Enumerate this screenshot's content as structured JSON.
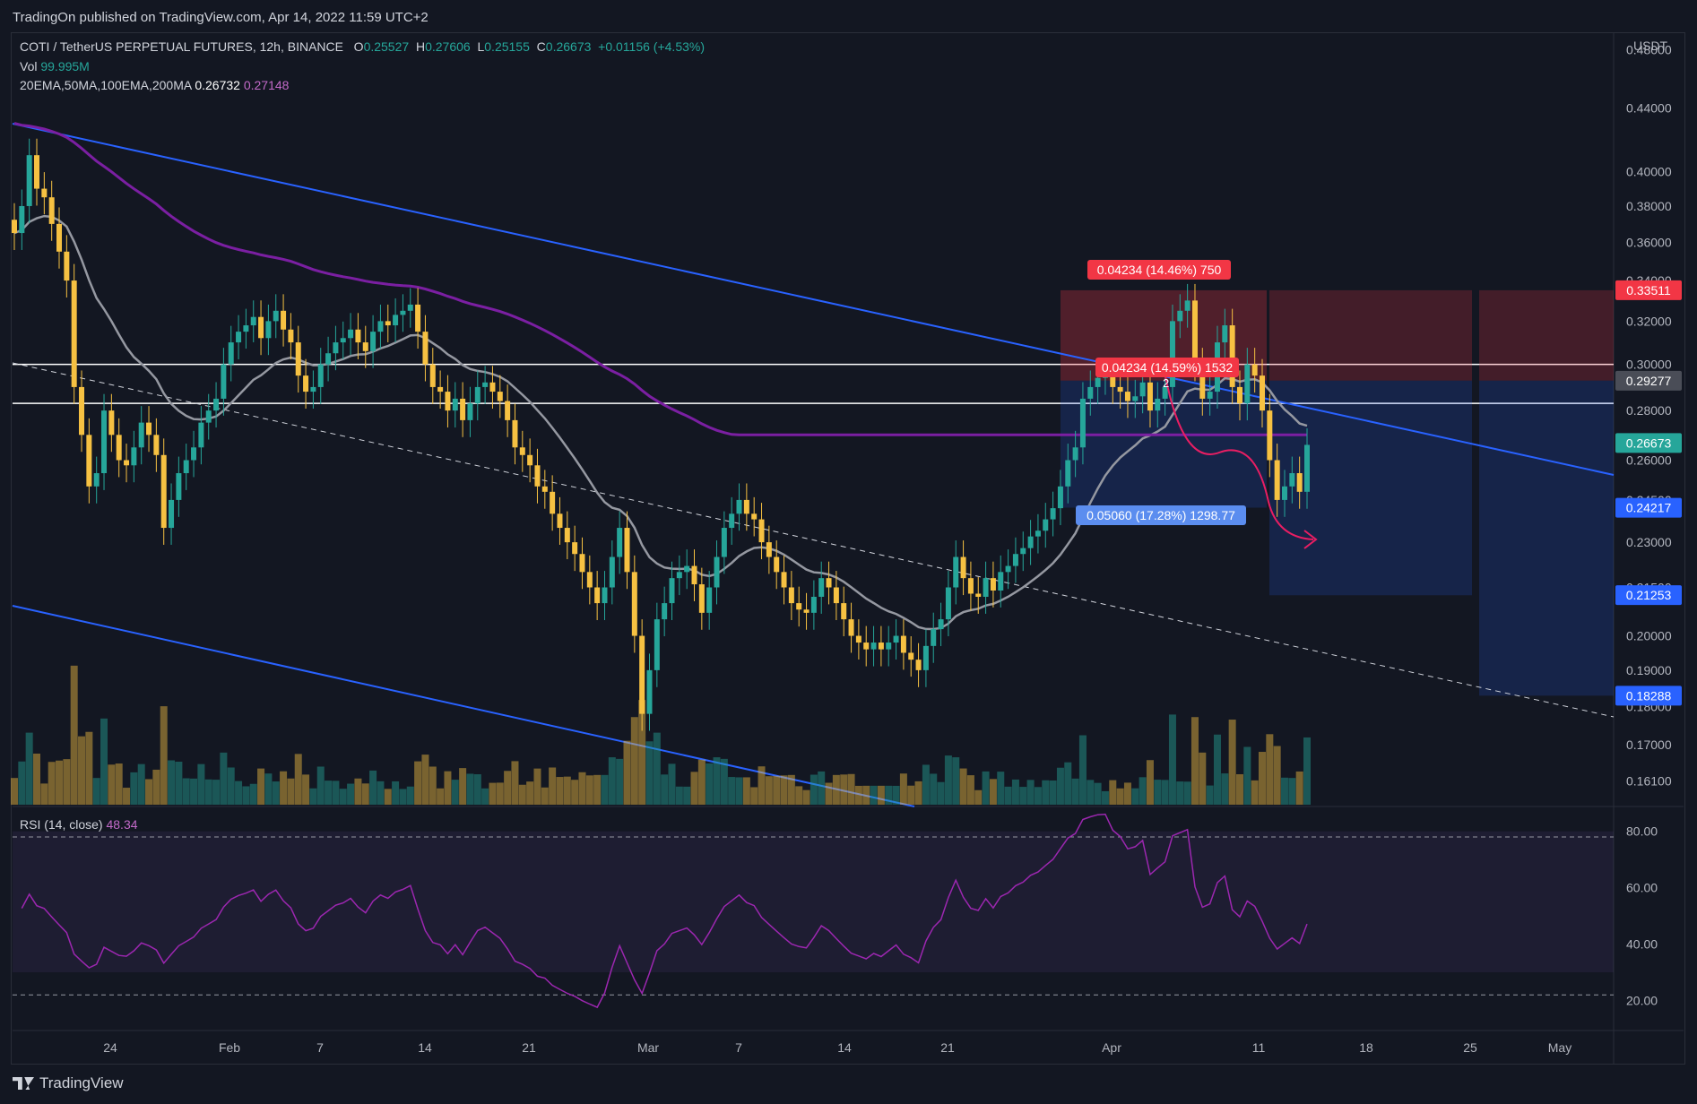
{
  "header": {
    "published": "TradingOn published on TradingView.com, Apr 14, 2022 11:59 UTC+2"
  },
  "legend": {
    "symbol": "COTI / TetherUS PERPETUAL FUTURES, 12h, BINANCE",
    "o_label": "O",
    "o": "0.25527",
    "h_label": "H",
    "h": "0.27606",
    "l_label": "L",
    "l": "0.25155",
    "c_label": "C",
    "c": "0.26673",
    "change": "+0.01156 (+4.53%)",
    "vol_label": "Vol",
    "vol": "99.995M",
    "ma_label": "20EMA,50MA,100EMA,200MA",
    "ma1": "0.26732",
    "ma2": "0.27148",
    "rsi_label": "RSI (14, close)",
    "rsi": "48.34"
  },
  "price_axis": {
    "currency": "USDT",
    "ticks": [
      "0.48000",
      "0.44000",
      "0.40000",
      "0.38000",
      "0.36000",
      "0.34000",
      "0.32000",
      "0.30000",
      "0.28000",
      "0.26000",
      "0.24500",
      "0.23000",
      "0.21500",
      "0.20000",
      "0.19000",
      "0.18000",
      "0.17000",
      "0.16100"
    ],
    "badges": [
      {
        "text": "0.33511",
        "color": "#f23645"
      },
      {
        "text": "0.29277",
        "color": "#4a4d57"
      },
      {
        "text": "0.26673",
        "color": "#26a69a"
      },
      {
        "text": "0.24217",
        "color": "#2962ff"
      },
      {
        "text": "0.21253",
        "color": "#2962ff"
      },
      {
        "text": "0.18288",
        "color": "#2962ff"
      }
    ]
  },
  "rsi_axis": {
    "ticks": [
      "80.00",
      "60.00",
      "40.00",
      "20.00"
    ]
  },
  "time_axis": {
    "ticks": [
      "24",
      "Feb",
      "7",
      "14",
      "21",
      "Mar",
      "7",
      "14",
      "21",
      "Apr",
      "11",
      "18",
      "25",
      "May"
    ]
  },
  "annotations": {
    "target_label": "0.04234 (14.46%) 750",
    "stop_label": "0.05060 (17.28%) 1298.77",
    "mid_label": "0.04234 (14.59%) 1532",
    "mid_label_2": "2"
  },
  "chart_data": {
    "type": "candlestick",
    "title": "COTI / TetherUS PERPETUAL FUTURES, 12h, BINANCE",
    "y_range": [
      0.155,
      0.49
    ],
    "y_scale": "log",
    "colors": {
      "up": "#26a69a",
      "down": "#f6c142",
      "ema20": "#9598a1",
      "ma200": "#7b1fa2",
      "trend": "#2962ff",
      "rsi": "#9c27b0"
    },
    "closes": [
      0.365,
      0.38,
      0.41,
      0.39,
      0.385,
      0.37,
      0.355,
      0.34,
      0.29,
      0.27,
      0.25,
      0.255,
      0.28,
      0.27,
      0.26,
      0.258,
      0.265,
      0.275,
      0.27,
      0.262,
      0.235,
      0.245,
      0.255,
      0.26,
      0.265,
      0.275,
      0.28,
      0.285,
      0.3,
      0.31,
      0.315,
      0.318,
      0.322,
      0.312,
      0.32,
      0.325,
      0.316,
      0.31,
      0.295,
      0.288,
      0.29,
      0.3,
      0.305,
      0.31,
      0.312,
      0.316,
      0.31,
      0.306,
      0.315,
      0.32,
      0.318,
      0.323,
      0.325,
      0.328,
      0.315,
      0.3,
      0.29,
      0.288,
      0.28,
      0.285,
      0.276,
      0.283,
      0.29,
      0.292,
      0.288,
      0.284,
      0.276,
      0.265,
      0.262,
      0.258,
      0.25,
      0.248,
      0.24,
      0.235,
      0.23,
      0.226,
      0.22,
      0.215,
      0.21,
      0.215,
      0.225,
      0.235,
      0.22,
      0.2,
      0.178,
      0.19,
      0.205,
      0.21,
      0.218,
      0.22,
      0.222,
      0.216,
      0.207,
      0.215,
      0.225,
      0.235,
      0.24,
      0.245,
      0.24,
      0.238,
      0.23,
      0.225,
      0.22,
      0.215,
      0.21,
      0.208,
      0.207,
      0.212,
      0.218,
      0.215,
      0.21,
      0.205,
      0.2,
      0.198,
      0.196,
      0.198,
      0.196,
      0.198,
      0.2,
      0.195,
      0.193,
      0.19,
      0.197,
      0.202,
      0.205,
      0.215,
      0.225,
      0.218,
      0.213,
      0.212,
      0.218,
      0.214,
      0.22,
      0.222,
      0.226,
      0.228,
      0.232,
      0.234,
      0.238,
      0.242,
      0.25,
      0.26,
      0.265,
      0.285,
      0.29,
      0.294,
      0.295,
      0.29,
      0.288,
      0.284,
      0.286,
      0.292,
      0.28,
      0.285,
      0.29,
      0.32,
      0.325,
      0.33,
      0.3,
      0.285,
      0.288,
      0.31,
      0.318,
      0.29,
      0.283,
      0.3,
      0.295,
      0.28,
      0.26,
      0.245,
      0.25,
      0.255,
      0.248,
      0.266
    ]
  }
}
